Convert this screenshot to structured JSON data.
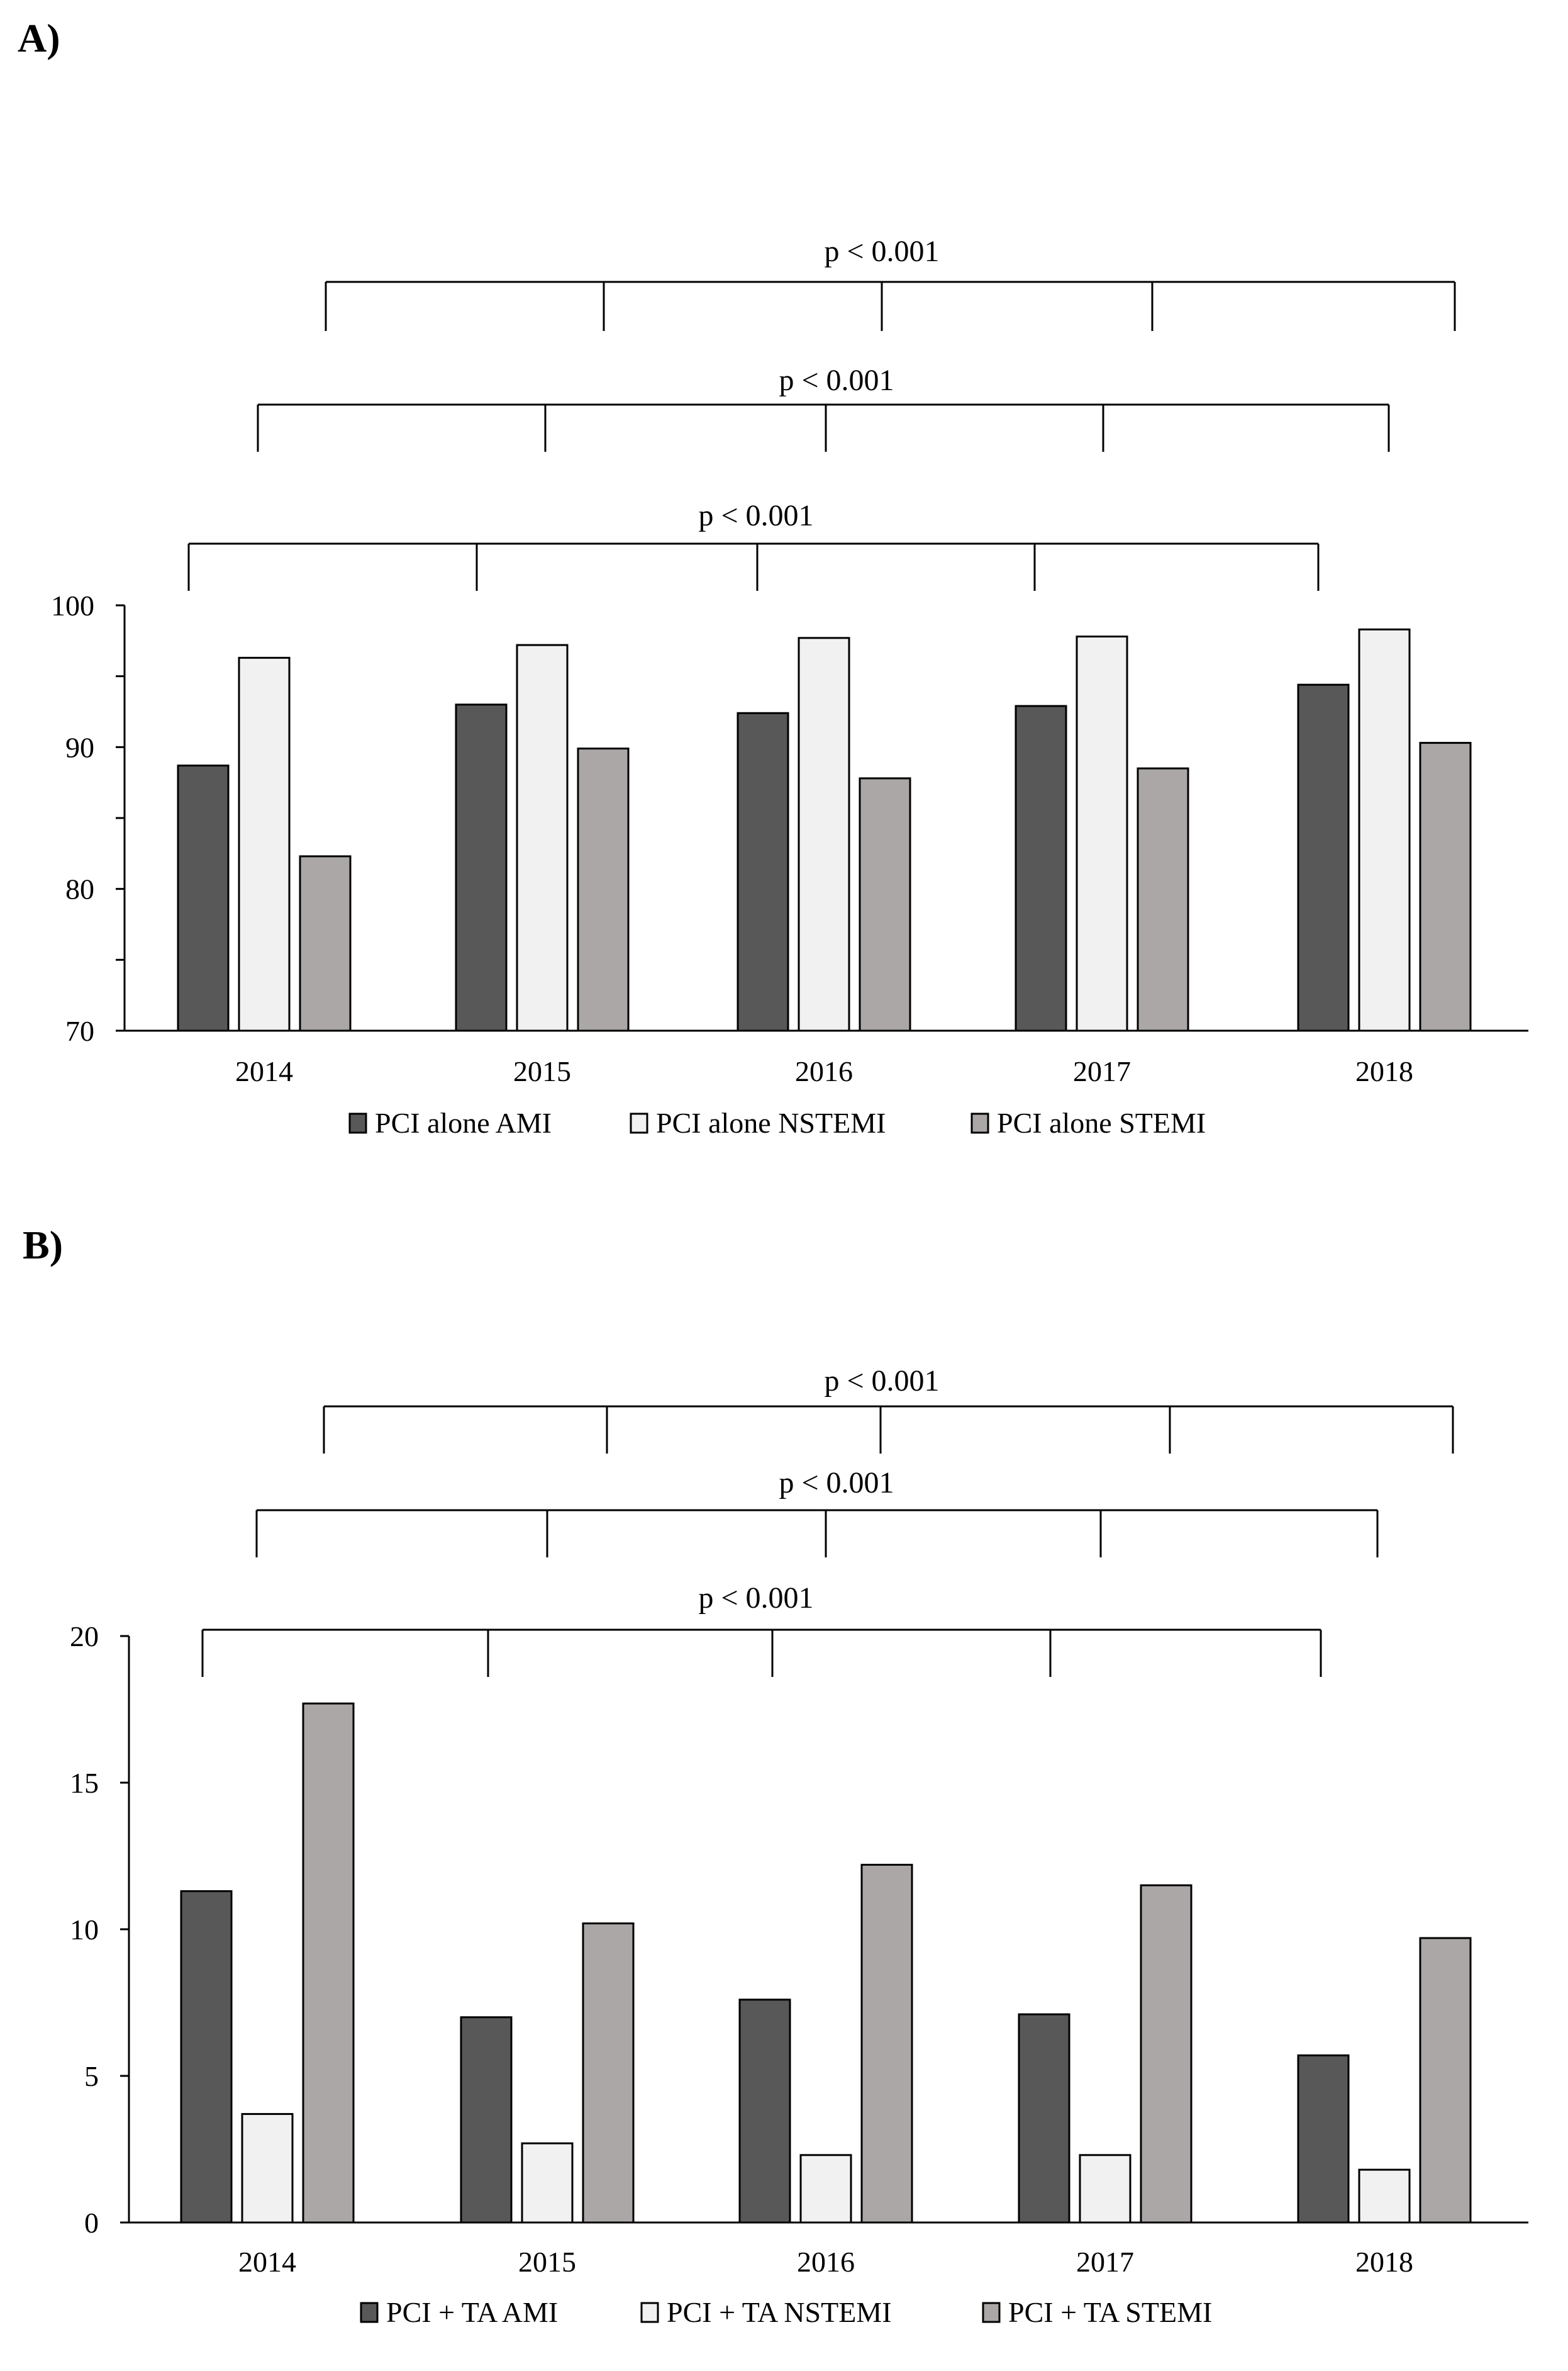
{
  "chart_data": [
    {
      "type": "bar",
      "panel_label": "A)",
      "categories": [
        "2014",
        "2015",
        "2016",
        "2017",
        "2018"
      ],
      "ylim": [
        70,
        100
      ],
      "yticks": [
        70,
        80,
        90,
        100
      ],
      "series": [
        {
          "name": "PCI alone AMI",
          "values": [
            88.7,
            93.0,
            92.4,
            92.9,
            94.4
          ],
          "color": "#585858"
        },
        {
          "name": "PCI alone NSTEMI",
          "values": [
            96.3,
            97.2,
            97.7,
            97.8,
            98.3
          ],
          "color": "#f1f1f1"
        },
        {
          "name": "PCI alone STEMI",
          "values": [
            82.3,
            89.9,
            87.8,
            88.5,
            90.3
          ],
          "color": "#aba7a6"
        }
      ],
      "significance_labels": [
        "p < 0.001",
        "p < 0.001",
        "p < 0.001"
      ],
      "legend_position": "bottom"
    },
    {
      "type": "bar",
      "panel_label": "B)",
      "categories": [
        "2014",
        "2015",
        "2016",
        "2017",
        "2018"
      ],
      "ylim": [
        0,
        20
      ],
      "yticks": [
        0,
        5,
        10,
        15,
        20
      ],
      "series": [
        {
          "name": "PCI + TA AMI",
          "values": [
            11.3,
            7.0,
            7.6,
            7.1,
            5.7
          ],
          "color": "#585858"
        },
        {
          "name": "PCI + TA NSTEMI",
          "values": [
            3.7,
            2.7,
            2.3,
            2.3,
            1.8
          ],
          "color": "#f1f1f1"
        },
        {
          "name": "PCI + TA STEMI",
          "values": [
            17.7,
            10.2,
            12.2,
            11.5,
            9.7
          ],
          "color": "#aba7a6"
        }
      ],
      "significance_labels": [
        "p < 0.001",
        "p < 0.001",
        "p < 0.001"
      ],
      "legend_position": "bottom"
    }
  ]
}
